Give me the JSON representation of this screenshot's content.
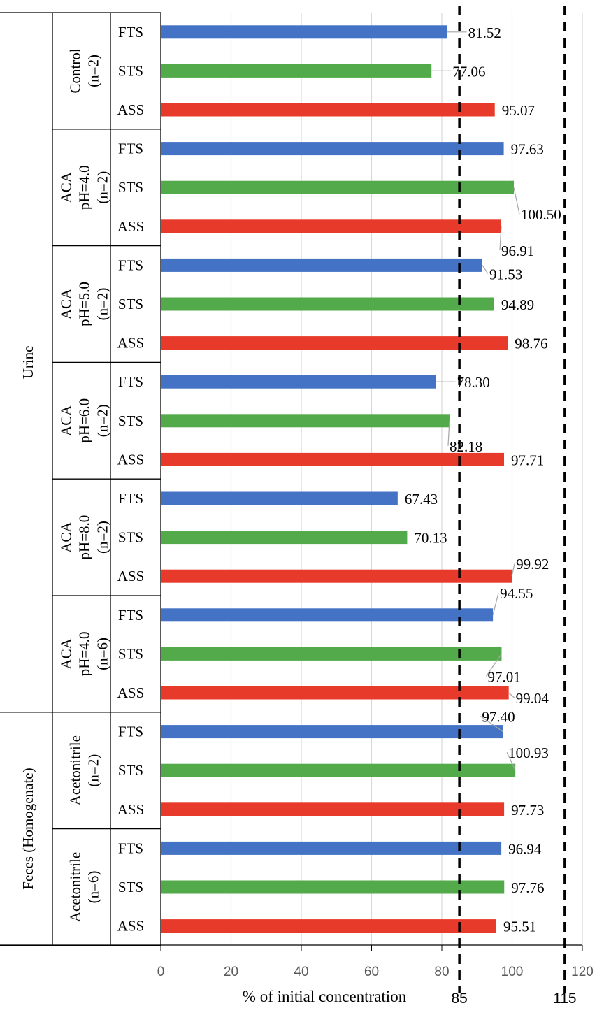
{
  "chart_data": {
    "type": "bar",
    "orientation": "horizontal",
    "xlabel": "% of initial concentration",
    "xlim": [
      0,
      120
    ],
    "xticks": [
      "0",
      "20",
      "40",
      "60",
      "80",
      "100",
      "120"
    ],
    "grid": true,
    "colors": {
      "FTS": "#4472C4",
      "STS": "#52AA4A",
      "ASS": "#E83A2A"
    },
    "reference_lines": [
      {
        "value": 85,
        "label": "85",
        "style": "dashed"
      },
      {
        "value": 115,
        "label": "115",
        "style": "dashed"
      }
    ],
    "top_groups": [
      {
        "label": "Urine",
        "subgroups": [
          0,
          1,
          2,
          3,
          4,
          5
        ]
      },
      {
        "label": "Feces (Homogenate)",
        "subgroups": [
          6,
          7
        ]
      }
    ],
    "subgroups": [
      {
        "label_lines": [
          "Control",
          "(n=2)"
        ],
        "bars": [
          {
            "category": "FTS",
            "value": 81.52,
            "label": "81.52"
          },
          {
            "category": "STS",
            "value": 77.06,
            "label": "77.06"
          },
          {
            "category": "ASS",
            "value": 95.07,
            "label": "95.07"
          }
        ]
      },
      {
        "label_lines": [
          "ACA",
          "pH=4.0",
          "(n=2)"
        ],
        "bars": [
          {
            "category": "FTS",
            "value": 97.63,
            "label": "97.63"
          },
          {
            "category": "STS",
            "value": 100.5,
            "label": "100.50"
          },
          {
            "category": "ASS",
            "value": 96.91,
            "label": "96.91"
          }
        ]
      },
      {
        "label_lines": [
          "ACA",
          "pH=5.0",
          "(n=2)"
        ],
        "bars": [
          {
            "category": "FTS",
            "value": 91.53,
            "label": "91.53"
          },
          {
            "category": "STS",
            "value": 94.89,
            "label": "94.89"
          },
          {
            "category": "ASS",
            "value": 98.76,
            "label": "98.76"
          }
        ]
      },
      {
        "label_lines": [
          "ACA",
          "pH=6.0",
          "(n=2)"
        ],
        "bars": [
          {
            "category": "FTS",
            "value": 78.3,
            "label": "78.30"
          },
          {
            "category": "STS",
            "value": 82.18,
            "label": "82.18"
          },
          {
            "category": "ASS",
            "value": 97.71,
            "label": "97.71"
          }
        ]
      },
      {
        "label_lines": [
          "ACA",
          "pH=8.0",
          "(n=2)"
        ],
        "bars": [
          {
            "category": "FTS",
            "value": 67.43,
            "label": "67.43"
          },
          {
            "category": "STS",
            "value": 70.13,
            "label": "70.13"
          },
          {
            "category": "ASS",
            "value": 99.92,
            "label": "99.92"
          }
        ]
      },
      {
        "label_lines": [
          "ACA",
          "pH=4.0",
          "(n=6)"
        ],
        "bars": [
          {
            "category": "FTS",
            "value": 94.55,
            "label": "94.55"
          },
          {
            "category": "STS",
            "value": 97.01,
            "label": "97.01"
          },
          {
            "category": "ASS",
            "value": 99.04,
            "label": "99.04"
          }
        ]
      },
      {
        "label_lines": [
          "Acetonitrile",
          "(n=2)"
        ],
        "bars": [
          {
            "category": "FTS",
            "value": 97.4,
            "label": "97.40"
          },
          {
            "category": "STS",
            "value": 100.93,
            "label": "100.93"
          },
          {
            "category": "ASS",
            "value": 97.73,
            "label": "97.73"
          }
        ]
      },
      {
        "label_lines": [
          "Acetonitrile",
          "(n=6)"
        ],
        "bars": [
          {
            "category": "FTS",
            "value": 96.94,
            "label": "96.94"
          },
          {
            "category": "STS",
            "value": 97.76,
            "label": "97.76"
          },
          {
            "category": "ASS",
            "value": 95.51,
            "label": "95.51"
          }
        ]
      }
    ]
  }
}
